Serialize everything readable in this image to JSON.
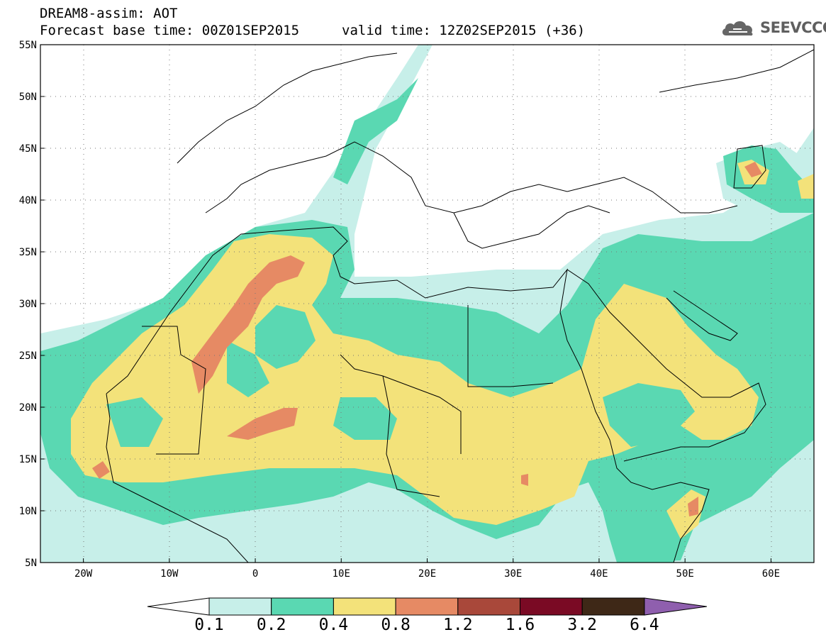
{
  "header": {
    "title": "DREAM8-assim: AOT",
    "base_time": "Forecast base time: 00Z01SEP2015",
    "valid_time": "valid time: 12Z02SEP2015 (+36)",
    "logo_text": "SEEVCCC"
  },
  "map": {
    "variable": "AOT",
    "projection": "lat-lon",
    "lon_range": [
      -25,
      65
    ],
    "lat_range": [
      5,
      55
    ],
    "lat_labels": [
      "55N",
      "50N",
      "45N",
      "40N",
      "35N",
      "30N",
      "25N",
      "20N",
      "15N",
      "10N",
      "5N"
    ],
    "lon_labels": [
      "20W",
      "10W",
      "0",
      "10E",
      "20E",
      "30E",
      "40E",
      "50E",
      "60E"
    ],
    "gridlines": "dotted"
  },
  "colorbar": {
    "levels": [
      "0.1",
      "0.2",
      "0.4",
      "0.8",
      "1.2",
      "1.6",
      "3.2",
      "6.4"
    ],
    "colors": [
      "#ffffff",
      "#c7efe9",
      "#5ad8b2",
      "#f3e27a",
      "#e68a64",
      "#a9483a",
      "#7a0a24",
      "#3e2817",
      "#8f5fae"
    ]
  }
}
